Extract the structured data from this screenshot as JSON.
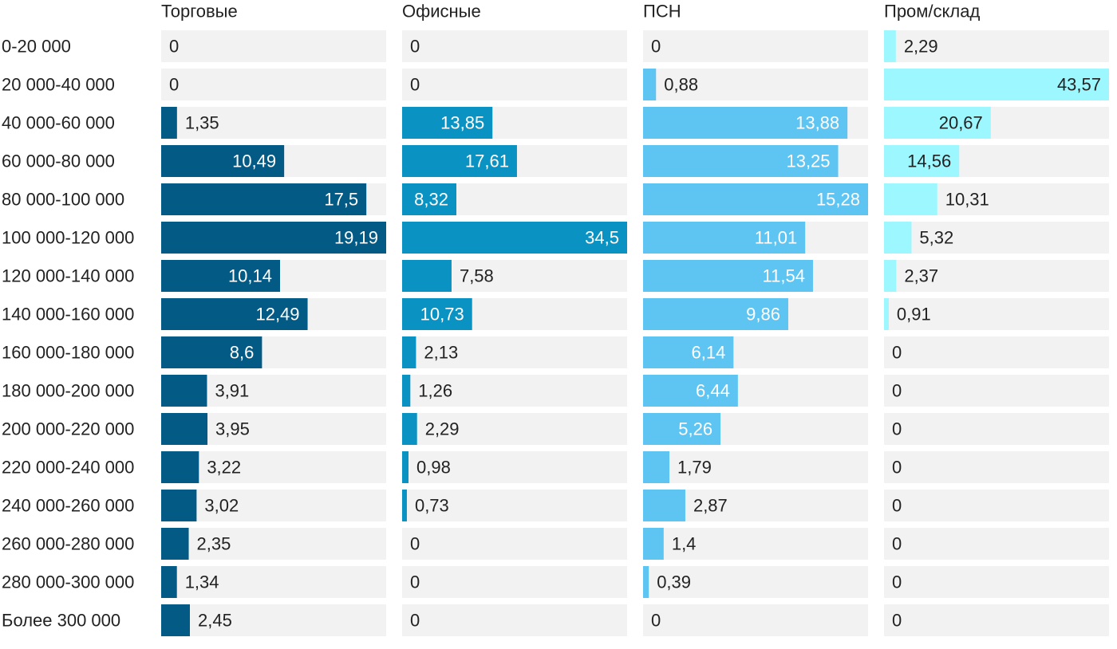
{
  "chart_data": {
    "type": "bar",
    "orientation": "horizontal",
    "layout": "small-multiples",
    "categories": [
      "0-20 000",
      "20 000-40 000",
      "40 000-60 000",
      "60 000-80 000",
      "80 000-100 000",
      "100 000-120 000",
      "120 000-140 000",
      "140 000-160 000",
      "160 000-180 000",
      "180 000-200 000",
      "200 000-220 000",
      "220 000-240 000",
      "240 000-260 000",
      "260 000-280 000",
      "280 000-300 000",
      "Более 300 000"
    ],
    "series": [
      {
        "name": "Торговые",
        "color": "#035a84",
        "values": [
          0,
          0,
          1.35,
          10.49,
          17.5,
          19.19,
          10.14,
          12.49,
          8.6,
          3.91,
          3.95,
          3.22,
          3.02,
          2.35,
          1.34,
          2.45
        ],
        "labels": [
          "0",
          "0",
          "1,35",
          "10,49",
          "17,5",
          "19,19",
          "10,14",
          "12,49",
          "8,6",
          "3,91",
          "3,95",
          "3,22",
          "3,02",
          "2,35",
          "1,34",
          "2,45"
        ],
        "xlim": [
          0,
          19.19
        ]
      },
      {
        "name": "Офисные",
        "color": "#0a93c2",
        "values": [
          0,
          0,
          13.85,
          17.61,
          8.32,
          34.5,
          7.58,
          10.73,
          2.13,
          1.26,
          2.29,
          0.98,
          0.73,
          0,
          0,
          0
        ],
        "labels": [
          "0",
          "0",
          "13,85",
          "17,61",
          "8,32",
          "34,5",
          "7,58",
          "10,73",
          "2,13",
          "1,26",
          "2,29",
          "0,98",
          "0,73",
          "0",
          "0",
          "0"
        ],
        "xlim": [
          0,
          34.5
        ]
      },
      {
        "name": "ПСН",
        "color": "#5ec5f3",
        "values": [
          0,
          0.88,
          13.88,
          13.25,
          15.28,
          11.01,
          11.54,
          9.86,
          6.14,
          6.44,
          5.26,
          1.79,
          2.87,
          1.4,
          0.39,
          0
        ],
        "labels": [
          "0",
          "0,88",
          "13,88",
          "13,25",
          "15,28",
          "11,01",
          "11,54",
          "9,86",
          "6,14",
          "6,44",
          "5,26",
          "1,79",
          "2,87",
          "1,4",
          "0,39",
          "0"
        ],
        "xlim": [
          0,
          15.28
        ]
      },
      {
        "name": "Пром/склад",
        "color": "#9cf7fe",
        "values": [
          2.29,
          43.57,
          20.67,
          14.56,
          10.31,
          5.32,
          2.37,
          0.91,
          0,
          0,
          0,
          0,
          0,
          0,
          0,
          0
        ],
        "labels": [
          "2,29",
          "43,57",
          "20,67",
          "14,56",
          "10,31",
          "5,32",
          "2,37",
          "0,91",
          "0",
          "0",
          "0",
          "0",
          "0",
          "0",
          "0",
          "0"
        ],
        "xlim": [
          0,
          43.57
        ]
      }
    ],
    "colors": {
      "track": "#f2f2f2",
      "text_dark": "#222222",
      "text_light": "#ffffff"
    },
    "title": "",
    "xlabel": "",
    "ylabel": "",
    "grid": false,
    "legend": "none"
  }
}
